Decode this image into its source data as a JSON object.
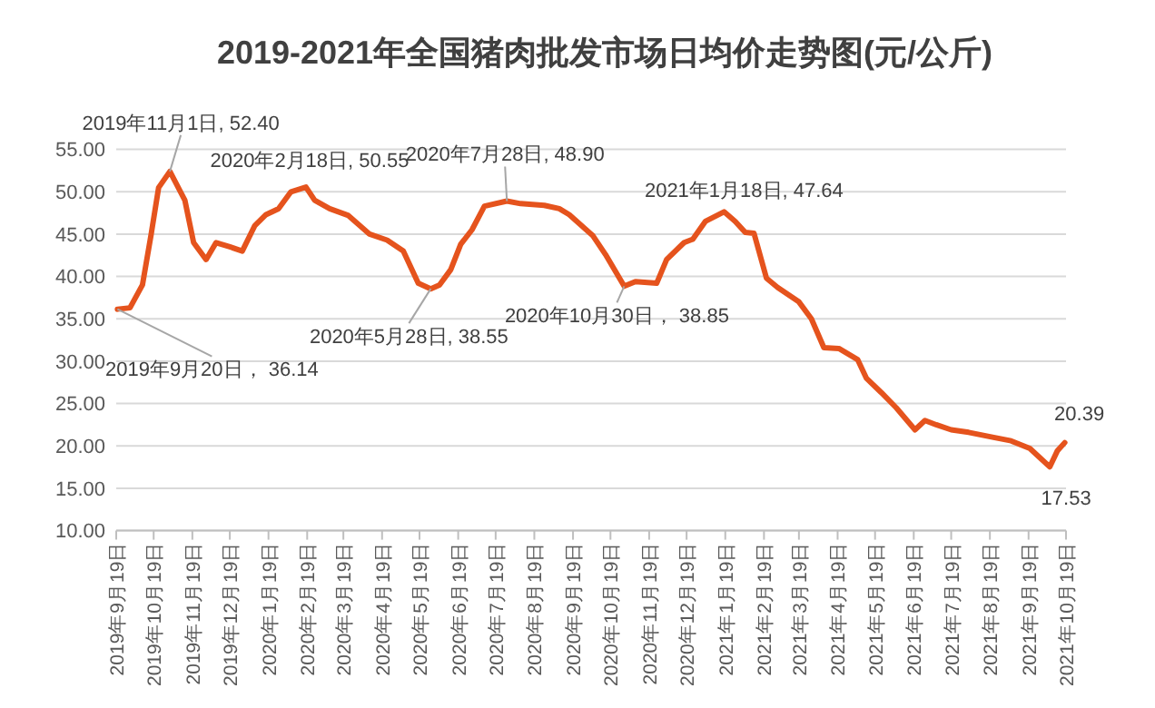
{
  "chart_data": {
    "type": "line",
    "title": "2019-2021年全国猪肉批发市场日均价走势图(元/公斤)",
    "x": [
      "2019-09-20",
      "2019-09-30",
      "2019-10-10",
      "2019-10-17",
      "2019-10-23",
      "2019-11-01",
      "2019-11-13",
      "2019-11-20",
      "2019-11-30",
      "2019-12-08",
      "2019-12-19",
      "2019-12-29",
      "2020-01-08",
      "2020-01-17",
      "2020-01-27",
      "2020-02-06",
      "2020-02-18",
      "2020-02-25",
      "2020-03-08",
      "2020-03-23",
      "2020-04-09",
      "2020-04-23",
      "2020-05-06",
      "2020-05-18",
      "2020-05-28",
      "2020-06-04",
      "2020-06-13",
      "2020-06-21",
      "2020-06-30",
      "2020-07-10",
      "2020-07-28",
      "2020-08-08",
      "2020-08-27",
      "2020-09-08",
      "2020-09-16",
      "2020-10-05",
      "2020-10-15",
      "2020-10-30",
      "2020-11-08",
      "2020-11-25",
      "2020-12-03",
      "2020-12-17",
      "2020-12-24",
      "2021-01-03",
      "2021-01-18",
      "2021-01-27",
      "2021-02-04",
      "2021-02-11",
      "2021-02-21",
      "2021-03-02",
      "2021-03-19",
      "2021-03-29",
      "2021-04-08",
      "2021-04-20",
      "2021-05-05",
      "2021-05-12",
      "2021-05-24",
      "2021-06-05",
      "2021-06-20",
      "2021-06-28",
      "2021-07-07",
      "2021-07-19",
      "2021-08-02",
      "2021-08-22",
      "2021-09-05",
      "2021-09-20",
      "2021-10-06",
      "2021-10-12",
      "2021-10-18"
    ],
    "series": [
      {
        "color": "#e5531d",
        "values": [
          36.14,
          36.3,
          39.0,
          45.0,
          50.5,
          52.4,
          49.0,
          44.0,
          42.0,
          44.0,
          43.5,
          43.0,
          46.0,
          47.3,
          48.0,
          50.0,
          50.55,
          49.0,
          48.0,
          47.2,
          45.0,
          44.3,
          43.0,
          39.2,
          38.55,
          39.0,
          40.8,
          43.8,
          45.5,
          48.3,
          48.9,
          48.6,
          48.4,
          48.0,
          47.3,
          44.8,
          42.6,
          38.85,
          39.4,
          39.2,
          42.0,
          44.0,
          44.4,
          46.5,
          47.64,
          46.5,
          45.2,
          45.1,
          39.8,
          38.7,
          37.0,
          35.0,
          31.6,
          31.5,
          30.2,
          28.0,
          26.3,
          24.5,
          21.9,
          23.0,
          22.5,
          21.9,
          21.6,
          21.0,
          20.6,
          19.7,
          17.53,
          19.4,
          20.39
        ]
      }
    ],
    "xlim": [
      "2019-09-19",
      "2021-10-19"
    ],
    "xticks": [
      {
        "value": "2019-09-19",
        "label": "2019年9月19日"
      },
      {
        "value": "2019-10-19",
        "label": "2019年10月19日"
      },
      {
        "value": "2019-11-19",
        "label": "2019年11月19日"
      },
      {
        "value": "2019-12-19",
        "label": "2019年12月19日"
      },
      {
        "value": "2020-01-19",
        "label": "2020年1月19日"
      },
      {
        "value": "2020-02-19",
        "label": "2020年2月19日"
      },
      {
        "value": "2020-03-19",
        "label": "2020年3月19日"
      },
      {
        "value": "2020-04-19",
        "label": "2020年4月19日"
      },
      {
        "value": "2020-05-19",
        "label": "2020年5月19日"
      },
      {
        "value": "2020-06-19",
        "label": "2020年6月19日"
      },
      {
        "value": "2020-07-19",
        "label": "2020年7月19日"
      },
      {
        "value": "2020-08-19",
        "label": "2020年8月19日"
      },
      {
        "value": "2020-09-19",
        "label": "2020年9月19日"
      },
      {
        "value": "2020-10-19",
        "label": "2020年10月19日"
      },
      {
        "value": "2020-11-19",
        "label": "2020年11月19日"
      },
      {
        "value": "2020-12-19",
        "label": "2020年12月19日"
      },
      {
        "value": "2021-01-19",
        "label": "2021年1月19日"
      },
      {
        "value": "2021-02-19",
        "label": "2021年2月19日"
      },
      {
        "value": "2021-03-19",
        "label": "2021年3月19日"
      },
      {
        "value": "2021-04-19",
        "label": "2021年4月19日"
      },
      {
        "value": "2021-05-19",
        "label": "2021年5月19日"
      },
      {
        "value": "2021-06-19",
        "label": "2021年6月19日"
      },
      {
        "value": "2021-07-19",
        "label": "2021年7月19日"
      },
      {
        "value": "2021-08-19",
        "label": "2021年8月19日"
      },
      {
        "value": "2021-09-19",
        "label": "2021年9月19日"
      },
      {
        "value": "2021-10-19",
        "label": "2021年10月19日"
      }
    ],
    "ylim": [
      10,
      55
    ],
    "yticks": [
      {
        "value": 10,
        "label": "10.00"
      },
      {
        "value": 15,
        "label": "15.00"
      },
      {
        "value": 20,
        "label": "20.00"
      },
      {
        "value": 25,
        "label": "25.00"
      },
      {
        "value": 30,
        "label": "30.00"
      },
      {
        "value": 35,
        "label": "35.00"
      },
      {
        "value": 40,
        "label": "40.00"
      },
      {
        "value": 45,
        "label": "45.00"
      },
      {
        "value": 50,
        "label": "50.00"
      },
      {
        "value": 55,
        "label": "55.00"
      }
    ],
    "grid": "y",
    "marker": "none",
    "line_style": "solid",
    "annotations": [
      {
        "text": "2019年9月20日， 36.14",
        "x": "2019-09-20",
        "y": 36.14
      },
      {
        "text": "2019年11月1日, 52.40",
        "x": "2019-11-01",
        "y": 52.4
      },
      {
        "text": "2020年2月18日, 50.55",
        "x": "2020-02-18",
        "y": 50.55
      },
      {
        "text": "2020年5月28日, 38.55",
        "x": "2020-05-28",
        "y": 38.55
      },
      {
        "text": "2020年7月28日, 48.90",
        "x": "2020-07-28",
        "y": 48.9
      },
      {
        "text": "2020年10月30日， 38.85",
        "x": "2020-10-30",
        "y": 38.85
      },
      {
        "text": "2021年1月18日, 47.64",
        "x": "2021-01-18",
        "y": 47.64
      },
      {
        "text": "20.39",
        "x": "2021-10-18",
        "y": 20.39
      },
      {
        "text": "17.53",
        "x": "2021-10-06",
        "y": 17.53
      }
    ]
  }
}
